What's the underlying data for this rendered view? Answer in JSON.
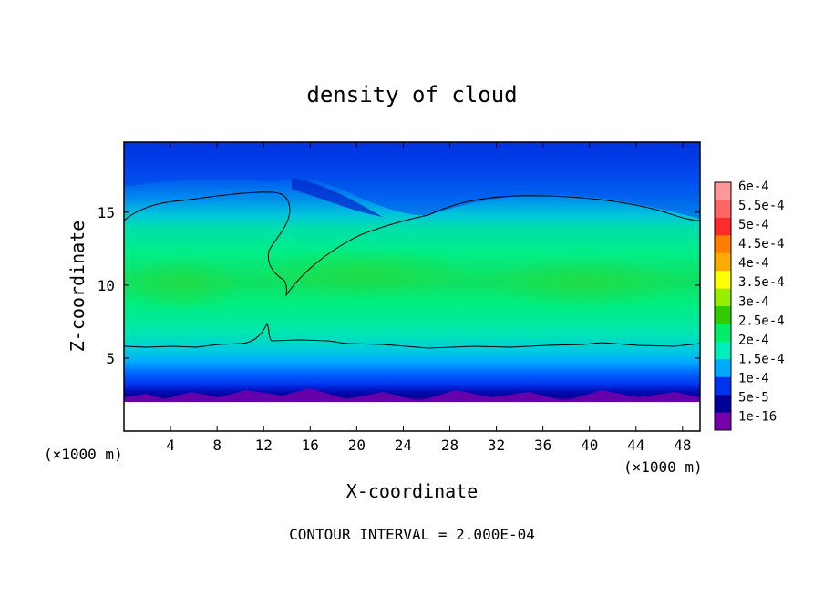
{
  "chart_data": {
    "type": "heatmap",
    "title": "density of cloud",
    "xlabel": "X-coordinate",
    "ylabel": "Z-coordinate",
    "x_unit_left": "(×1000 m)",
    "x_unit_right": "(×1000 m)",
    "footer": "CONTOUR INTERVAL = 2.000E-04",
    "xlim": [
      0,
      49.5
    ],
    "ylim": [
      0,
      19.8
    ],
    "x_ticks": [
      4,
      8,
      12,
      16,
      20,
      24,
      28,
      32,
      36,
      40,
      44,
      48
    ],
    "y_ticks": [
      5,
      10,
      15
    ],
    "colorbar": {
      "labels": [
        "6e-4",
        "5.5e-4",
        "5e-4",
        "4.5e-4",
        "4e-4",
        "3.5e-4",
        "3e-4",
        "2.5e-4",
        "2e-4",
        "1.5e-4",
        "1e-4",
        "5e-5",
        "1e-16"
      ],
      "colors": [
        "#ff9999",
        "#ff6666",
        "#ff2a2a",
        "#ff7f00",
        "#ffaa00",
        "#ffff00",
        "#99ee00",
        "#33cc00",
        "#00ee66",
        "#00eebb",
        "#00aaff",
        "#0033ee",
        "#000099",
        "#7700aa"
      ]
    },
    "field_description_values": {
      "cloud_base_km": 2.5,
      "lower_contour_km": 6.0,
      "upper_contour_km_left": 16.0,
      "upper_contour_km_right": 16.3,
      "core_max_density": 0.00026,
      "core_height_km": 10.2
    }
  }
}
